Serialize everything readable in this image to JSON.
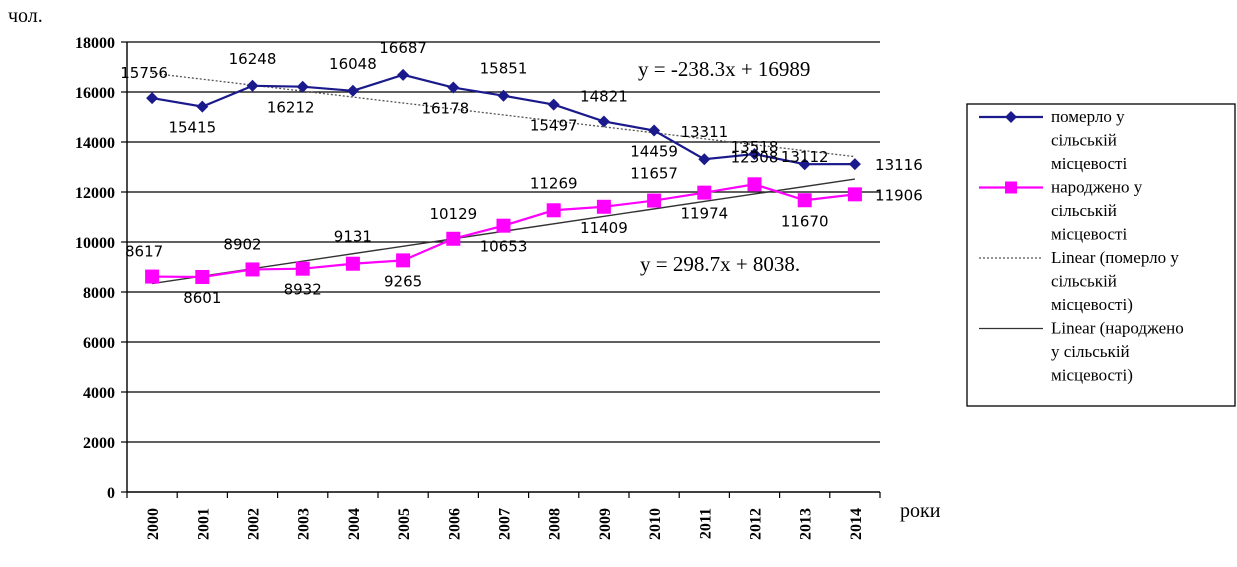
{
  "chart_data": {
    "type": "line",
    "ylabel": "чол.",
    "xlabel": "роки",
    "ylim": [
      0,
      18000
    ],
    "yticks": [
      0,
      2000,
      4000,
      6000,
      8000,
      10000,
      12000,
      14000,
      16000,
      18000
    ],
    "categories": [
      "2000",
      "2001",
      "2002",
      "2003",
      "2004",
      "2005",
      "2006",
      "2007",
      "2008",
      "2009",
      "2010",
      "2011",
      "2012",
      "2013",
      "2014"
    ],
    "grid": "horizontal",
    "legend_position": "right",
    "series": [
      {
        "name": "померло у сільській місцевості",
        "color": "#1a1a8c",
        "marker": "diamond",
        "values": [
          15756,
          15415,
          16248,
          16212,
          16048,
          16687,
          16178,
          15851,
          15497,
          14821,
          14459,
          13311,
          13518,
          13112,
          13116
        ]
      },
      {
        "name": "народжено у сільській місцевості",
        "color": "#ff00ff",
        "marker": "square",
        "values": [
          8617,
          8601,
          8902,
          8932,
          9131,
          9265,
          10129,
          10653,
          11269,
          11409,
          11657,
          11974,
          12308,
          11670,
          11906
        ]
      }
    ],
    "trendlines": [
      {
        "name": "Linear (померло у сільській місцевості)",
        "style": "dotted",
        "slope": -238.3,
        "intercept": 16989,
        "equation": "y = -238.3x + 16989"
      },
      {
        "name": "Linear (народжено у сільській місцевості)",
        "style": "solid",
        "slope": 298.7,
        "intercept": 8038,
        "equation": "y = 298.7x + 8038."
      }
    ],
    "legend": [
      {
        "lines": [
          "померло у",
          "сільській",
          "місцевості"
        ],
        "marker": "diamond",
        "color": "#1a1a8c",
        "style": "solid"
      },
      {
        "lines": [
          "народжено у",
          "сільській",
          "місцевості"
        ],
        "marker": "square",
        "color": "#ff00ff",
        "style": "solid"
      },
      {
        "lines": [
          "Linear (померло у",
          "сільській",
          "місцевості)"
        ],
        "marker": "none",
        "color": "#555555",
        "style": "dotted"
      },
      {
        "lines": [
          "Linear (народжено",
          "у сільській",
          "місцевості)"
        ],
        "marker": "none",
        "color": "#333333",
        "style": "solid"
      }
    ]
  }
}
